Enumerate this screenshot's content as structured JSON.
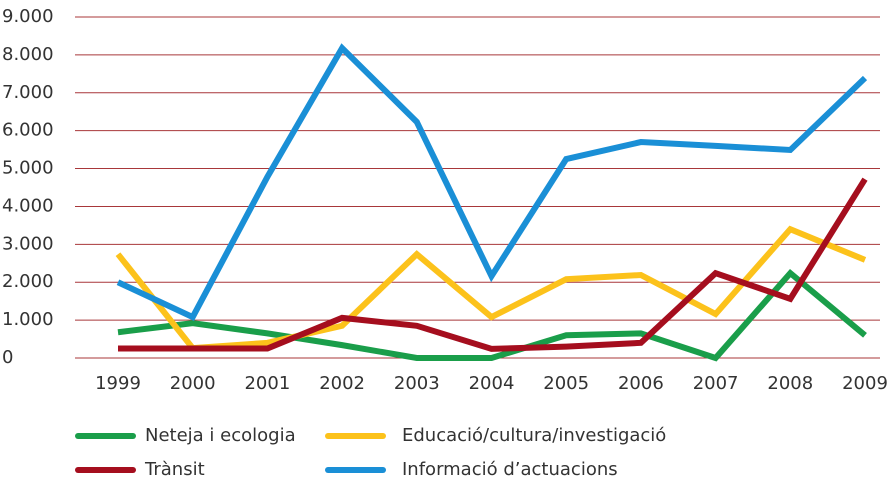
{
  "chart_data": {
    "type": "line",
    "categories": [
      "1999",
      "2000",
      "2001",
      "2002",
      "2003",
      "2004",
      "2005",
      "2006",
      "2007",
      "2008",
      "2009"
    ],
    "series": [
      {
        "name": "Neteja i ecologia",
        "color": "#1a9e4a",
        "values": [
          680,
          920,
          650,
          340,
          0,
          0,
          600,
          650,
          0,
          2240,
          600
        ]
      },
      {
        "name": "Educació/cultura/investigació",
        "color": "#fcc21b",
        "values": [
          2740,
          260,
          400,
          850,
          2740,
          1080,
          2080,
          2190,
          1160,
          3400,
          2590
        ]
      },
      {
        "name": "Trànsit",
        "color": "#a50e1e",
        "values": [
          250,
          250,
          250,
          1060,
          850,
          240,
          300,
          400,
          2240,
          1560,
          4720
        ]
      },
      {
        "name": "Informació d’actuacions",
        "color": "#1a8fd6",
        "values": [
          2000,
          1080,
          4780,
          8180,
          6230,
          2160,
          5250,
          5700,
          5600,
          5490,
          7390
        ]
      }
    ],
    "ylim": [
      0,
      9000
    ],
    "yticks": [
      0,
      {
        "value": 1000,
        "label": "1.000"
      },
      {
        "value": 2000,
        "label": "2.000"
      },
      {
        "value": 3000,
        "label": "3.000"
      },
      {
        "value": 4000,
        "label": "4.000"
      },
      {
        "value": 5000,
        "label": "5.000"
      },
      {
        "value": 6000,
        "label": "6.000"
      },
      {
        "value": 7000,
        "label": "7.000"
      },
      {
        "value": 8000,
        "label": "8.000"
      },
      {
        "value": 9000,
        "label": "9.000"
      }
    ],
    "grid": true
  }
}
